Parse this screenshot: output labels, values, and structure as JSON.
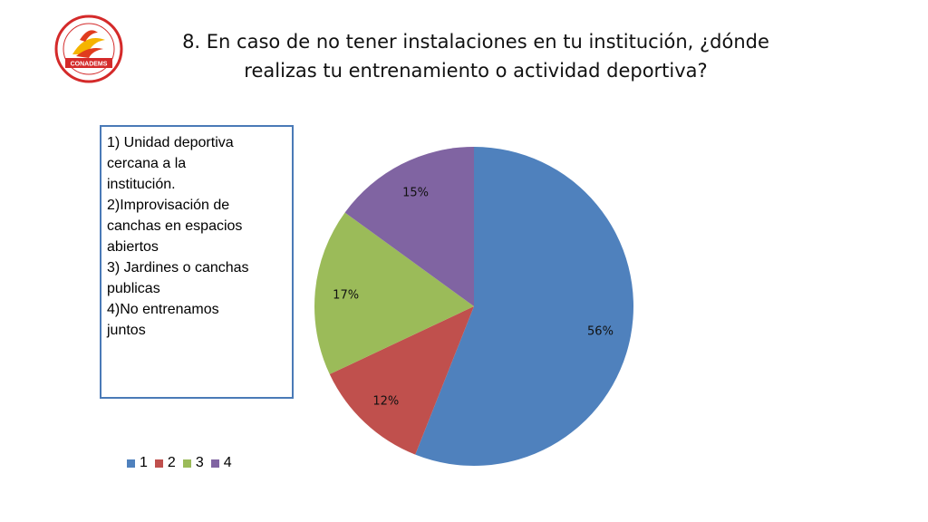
{
  "header": {
    "title_line1": "8. En caso de no tener instalaciones en tu institución, ¿dónde",
    "title_line2": "realizas tu entrenamiento o actividad deportiva?"
  },
  "logo": {
    "text_top": "DGECYTM CONALEP DGETA DGETI IPN",
    "text_main": "CONADEMS",
    "text_bottom": "SE CONACH UO DGB UNAM FE"
  },
  "notes": {
    "lines": [
      "1) Unidad deportiva",
      "cercana a la",
      "institución.",
      "2)Improvisación de",
      "canchas en espacios",
      "abiertos",
      "3) Jardines o canchas",
      "publicas",
      "4)No entrenamos",
      "juntos"
    ]
  },
  "chart_data": {
    "type": "pie",
    "categories": [
      "1",
      "2",
      "3",
      "4"
    ],
    "values": [
      56,
      12,
      17,
      15
    ],
    "labels": [
      "56%",
      "12%",
      "17%",
      "15%"
    ],
    "colors": [
      "#4f81bd",
      "#c0504d",
      "#9bbb59",
      "#8064a2"
    ],
    "legend_position": "bottom-left",
    "start_angle": "top",
    "direction": "clockwise"
  }
}
